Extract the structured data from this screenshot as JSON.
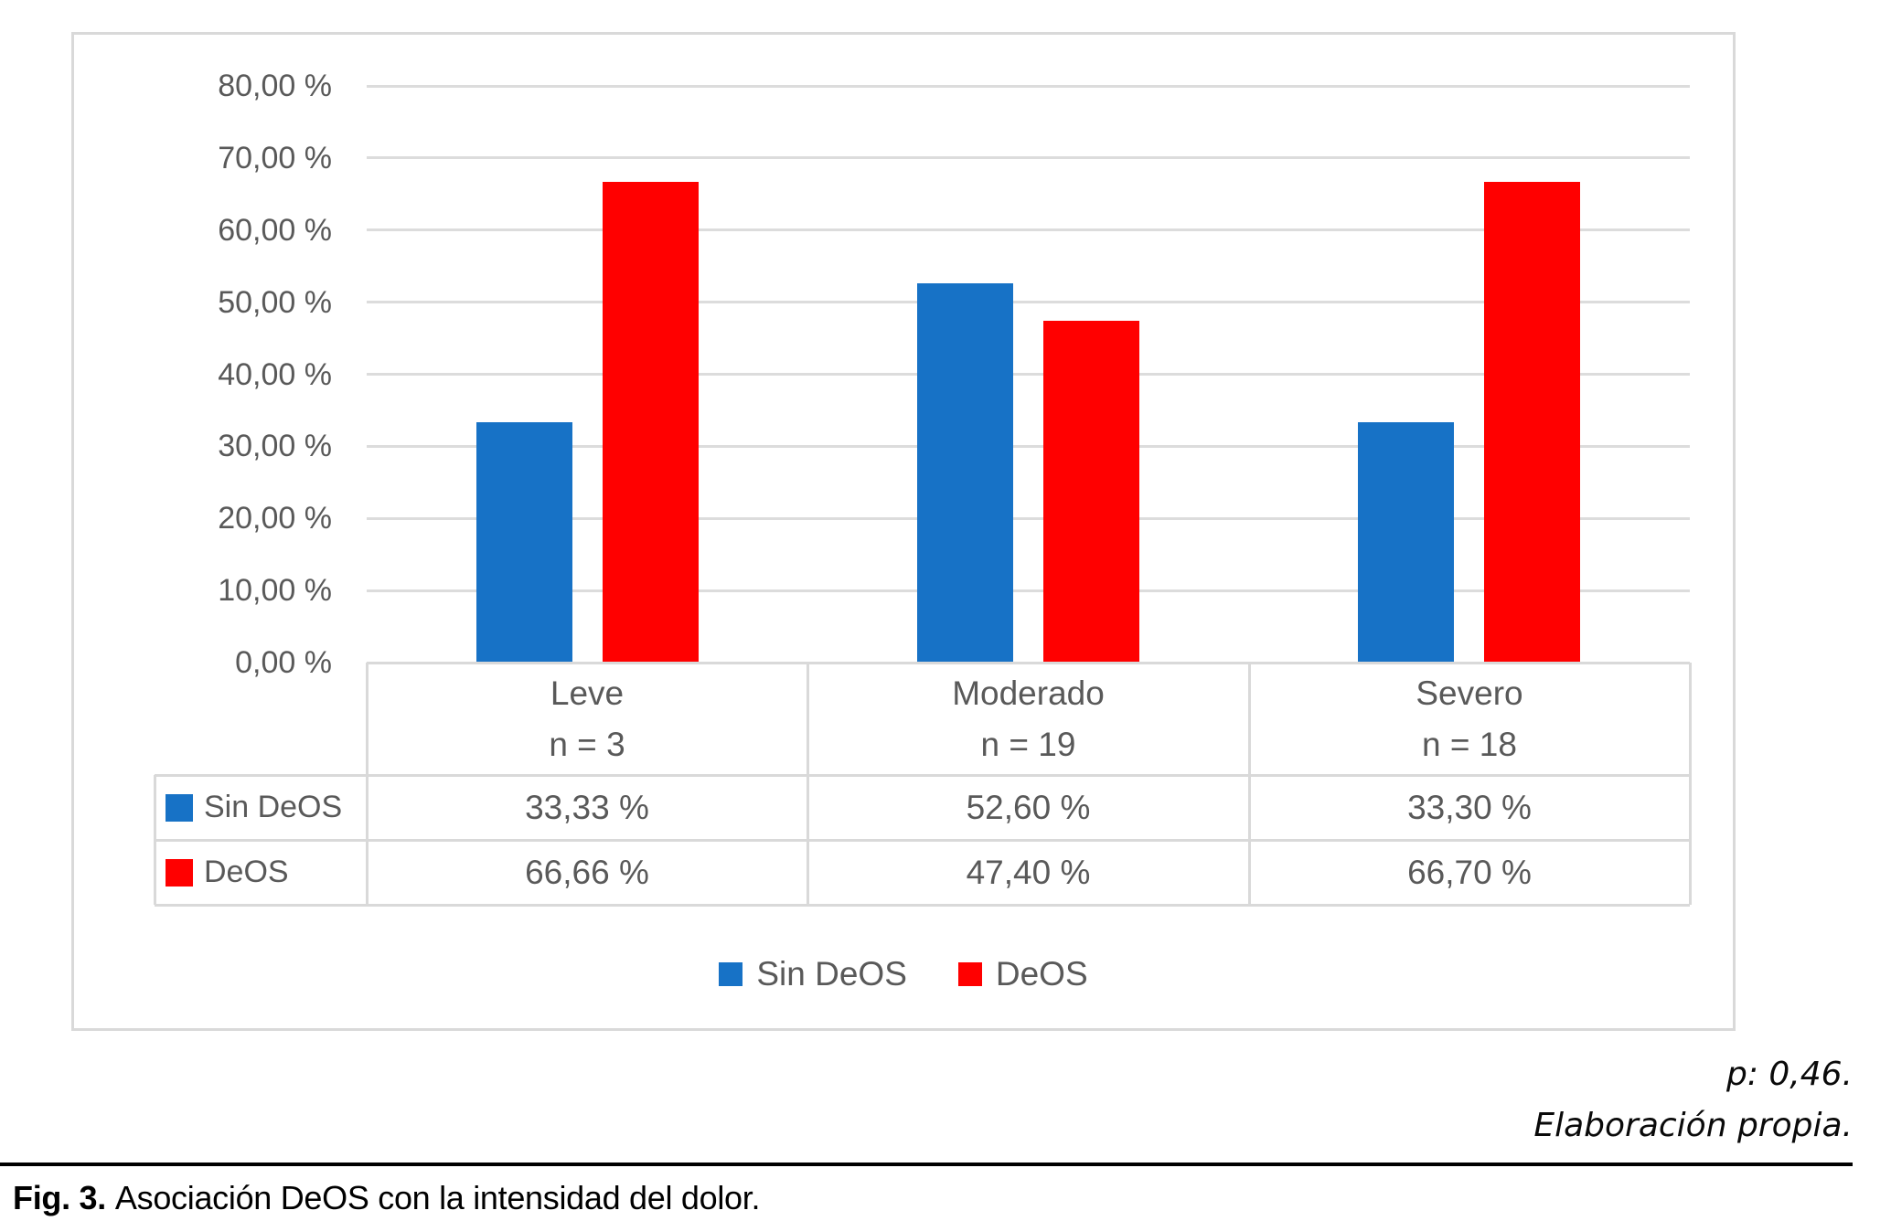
{
  "figure": {
    "notes": [
      "p: 0,46.",
      "Elaboración propia."
    ],
    "caption": {
      "label": "Fig. 3.",
      "text": "Asociación DeOS con la intensidad del dolor."
    }
  },
  "chart_data": {
    "type": "bar",
    "title": "",
    "xlabel": "",
    "ylabel": "",
    "grid": true,
    "legend_position": "bottom",
    "y_axis": {
      "min": 0,
      "max": 80,
      "step": 10,
      "tick_labels": [
        "80,00 %",
        "70,00 %",
        "60,00 %",
        "50,00 %",
        "40,00 %",
        "30,00 %",
        "20,00 %",
        "10,00 %",
        "0,00 %"
      ]
    },
    "categories": [
      {
        "name": "Leve",
        "n_label": "n = 3"
      },
      {
        "name": "Moderado",
        "n_label": "n = 19"
      },
      {
        "name": "Severo",
        "n_label": "n = 18"
      }
    ],
    "series": [
      {
        "name": "Sin DeOS",
        "color": "#1772c6",
        "values": [
          33.33,
          52.6,
          33.3
        ],
        "display_values": [
          "33,33 %",
          "52,60 %",
          "33,30 %"
        ]
      },
      {
        "name": "DeOS",
        "color": "#ff0000",
        "values": [
          66.66,
          47.4,
          66.7
        ],
        "display_values": [
          "66,66 %",
          "47,40 %",
          "66,70 %"
        ]
      }
    ],
    "colors": {
      "axis_text": "#595959",
      "gridline": "#d9d9d9",
      "frame_border": "#d9d9d9"
    }
  }
}
